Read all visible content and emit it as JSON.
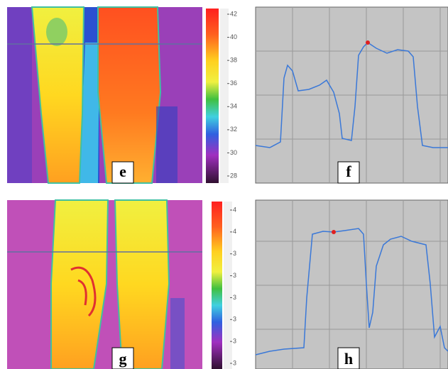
{
  "panels": [
    {
      "label": "e",
      "colorbar_labels": [
        "42",
        "40",
        "38",
        "36",
        "34",
        "32",
        "30",
        "28"
      ]
    },
    {
      "label": "f"
    },
    {
      "label": "g",
      "colorbar_labels": [
        "4",
        "4",
        "3",
        "3",
        "3",
        "3",
        "3",
        "3"
      ]
    },
    {
      "label": "h"
    }
  ]
}
